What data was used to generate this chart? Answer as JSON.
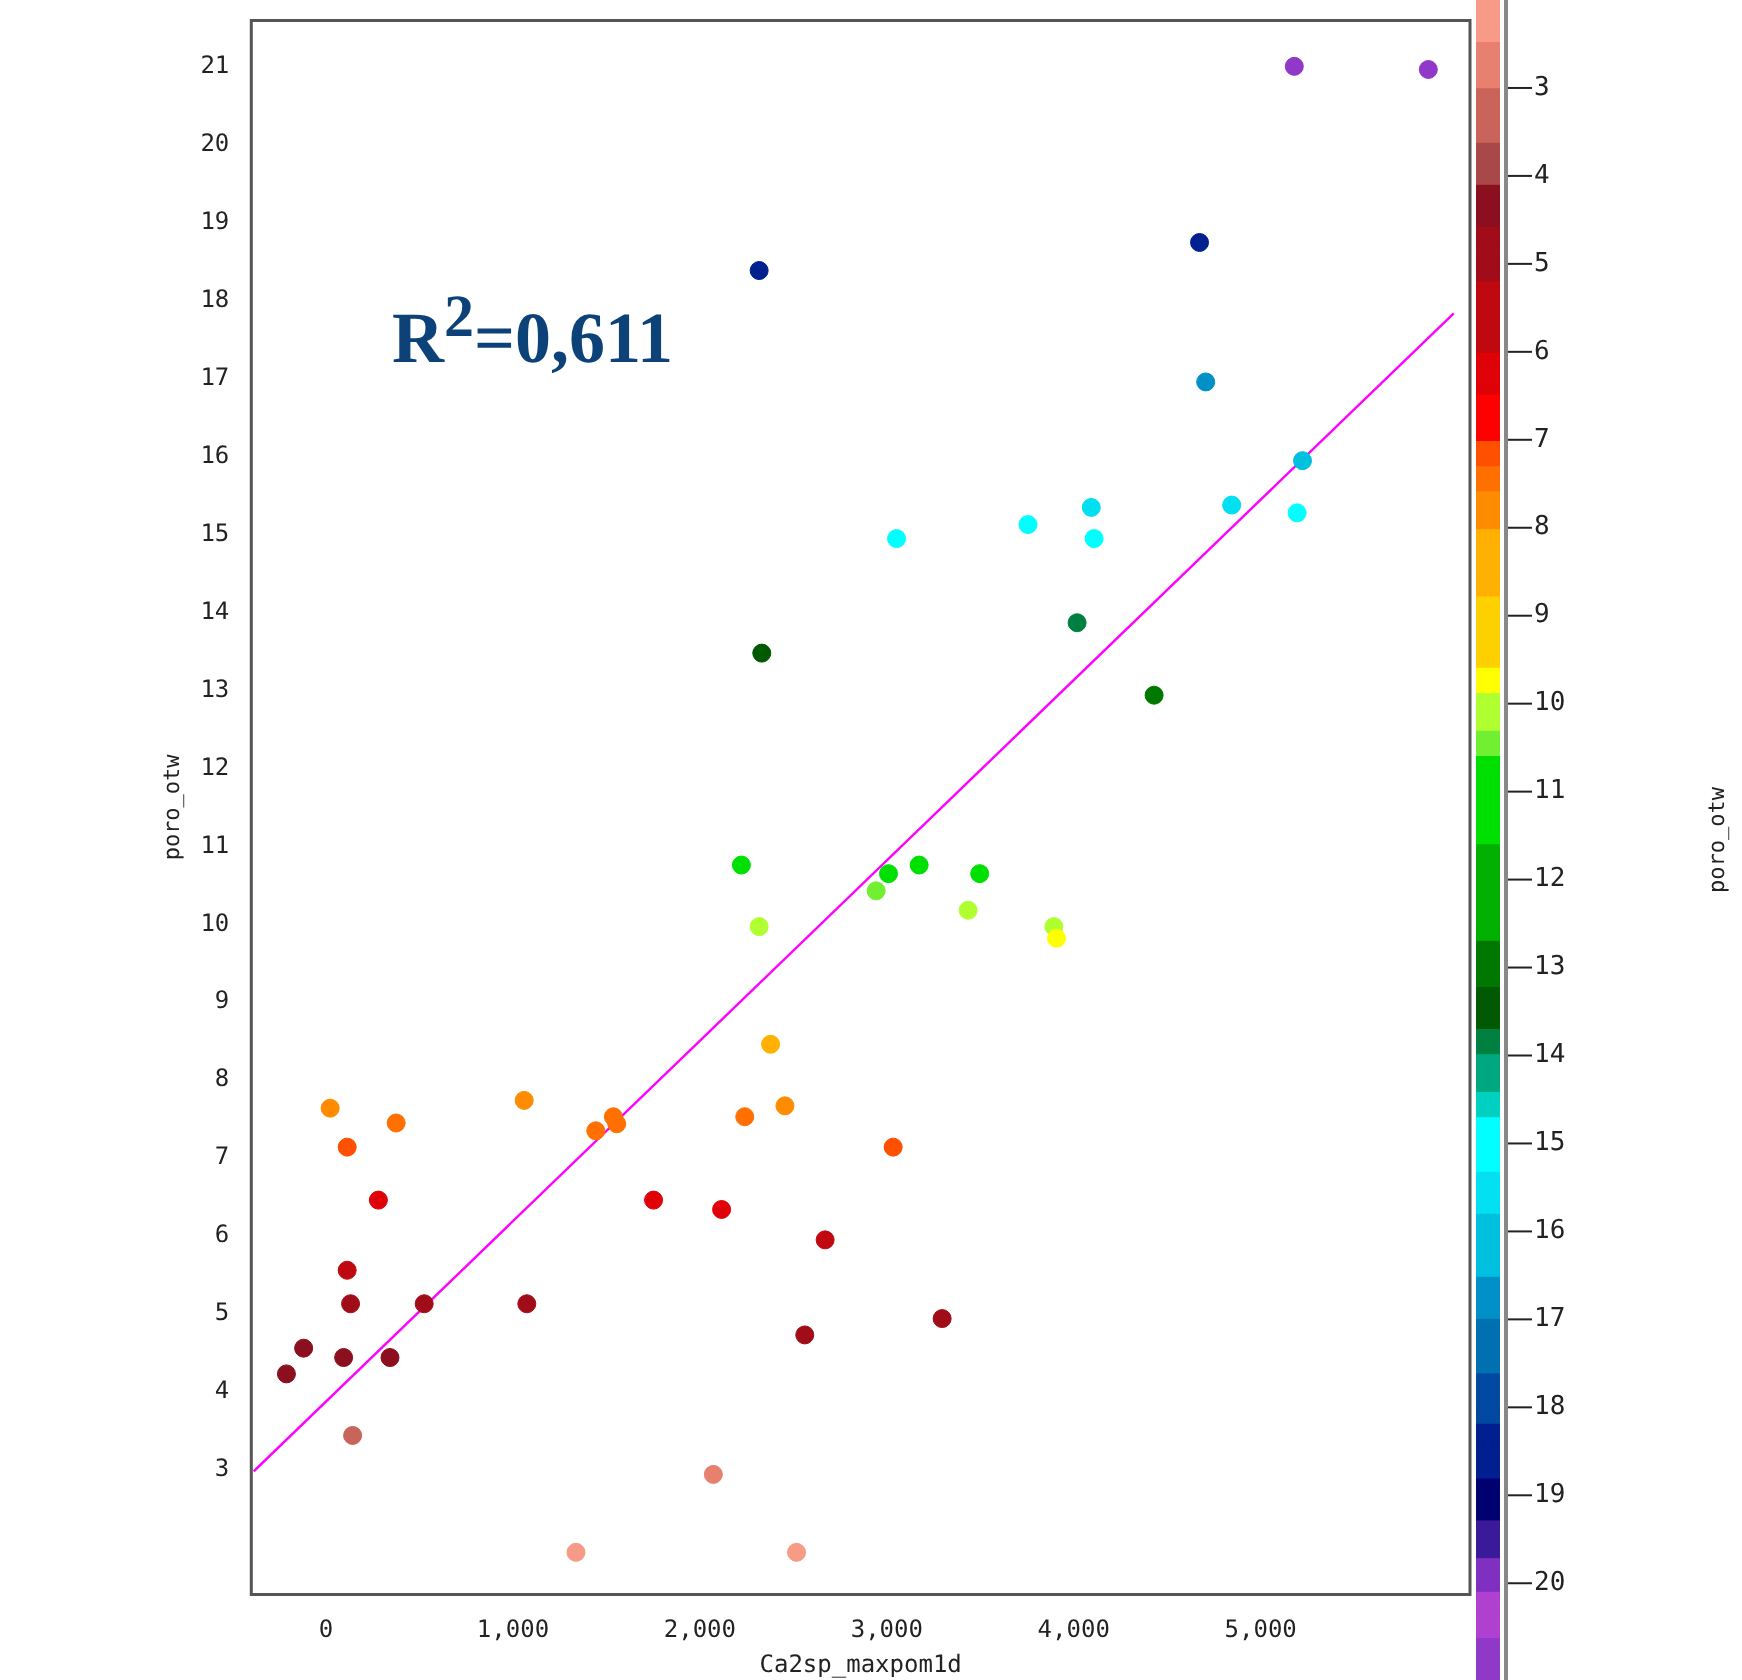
{
  "chart_data": {
    "type": "scatter",
    "xlabel": "Ca2sp_maxpom1d",
    "ylabel": "poro_otw",
    "clabel": "poro_otw",
    "xlim": [
      -400,
      6120
    ],
    "ylim": [
      1.4,
      21.6
    ],
    "xticks": [
      0,
      {
        "value": 1000,
        "label": "1,000"
      },
      {
        "value": 2000,
        "label": "2,000"
      },
      {
        "value": 3000,
        "label": "3,000"
      },
      {
        "value": 4000,
        "label": "4,000"
      },
      {
        "value": 5000,
        "label": "5,000"
      }
    ],
    "yticks": [
      3,
      4,
      5,
      6,
      7,
      8,
      9,
      10,
      11,
      12,
      13,
      14,
      15,
      16,
      17,
      18,
      19,
      20,
      21
    ],
    "clim": [
      2,
      21.1
    ],
    "cticks": [
      3,
      4,
      5,
      6,
      7,
      8,
      9,
      10,
      11,
      12,
      13,
      14,
      15,
      16,
      17,
      18,
      19,
      20
    ],
    "marker": "circle",
    "annotations": [
      "R$^{2}$=0,611"
    ],
    "series": [
      {
        "type": "scatter",
        "x": [
          22,
          113,
          375,
          1060,
          1443,
          1537,
          1555,
          2240,
          2378,
          2455,
          2222,
          2317,
          280,
          113,
          131,
          525,
          1074,
          -120,
          -212,
          94,
          342,
          142,
          1752,
          2116,
          2670,
          2561,
          2072,
          1337,
          2517,
          2943,
          3009,
          3173,
          3497,
          3435,
          3894,
          3908,
          3034,
          3296,
          5180,
          5897,
          4673,
          4706,
          5224,
          4845,
          5195,
          4094,
          4109,
          3755,
          3052,
          4018,
          4430,
          2317,
          2331
        ],
        "values": [
          7.64,
          7.14,
          7.45,
          7.74,
          7.35,
          7.53,
          7.44,
          7.53,
          8.46,
          7.67,
          10.76,
          9.97,
          6.46,
          5.56,
          5.13,
          5.13,
          5.13,
          4.56,
          4.23,
          4.44,
          4.44,
          3.44,
          6.46,
          6.34,
          5.95,
          4.73,
          2.94,
          1.94,
          1.94,
          10.43,
          10.65,
          10.76,
          10.65,
          10.18,
          9.97,
          9.82,
          7.14,
          4.94,
          21.01,
          20.97,
          18.75,
          16.96,
          15.95,
          15.38,
          15.28,
          15.35,
          14.95,
          15.13,
          14.95,
          13.87,
          12.94,
          18.39,
          13.48
        ],
        "colors": [
          "#ff8c00",
          "#ff5000",
          "#ff7000",
          "#ff8c00",
          "#ff7000",
          "#ff7000",
          "#ff7000",
          "#ff7000",
          "#ffb000",
          "#ff8c00",
          "#00e000",
          "#b0ff30",
          "#e00008",
          "#c00810",
          "#a00c18",
          "#a00c18",
          "#a00c18",
          "#8b0f1e",
          "#8b0f1e",
          "#8b0f1e",
          "#8b0f1e",
          "#c8645a",
          "#e00008",
          "#e00008",
          "#c00810",
          "#a00c18",
          "#e8806f",
          "#f79a86",
          "#f79a86",
          "#70f030",
          "#00e000",
          "#00e000",
          "#00e000",
          "#b0ff30",
          "#b0ff30",
          "#ffff00",
          "#ff5000",
          "#a00c18",
          "#9038c8",
          "#9038c8",
          "#002090",
          "#0090c8",
          "#00c0e0",
          "#00e0f0",
          "#00ffff",
          "#00e0f0",
          "#00ffff",
          "#00ffff",
          "#00ffff",
          "#008040",
          "#007800",
          "#002090",
          "#005800"
        ],
        "cvalues": [
          7.64,
          7.14,
          7.45,
          7.74,
          7.35,
          7.53,
          7.44,
          7.53,
          8.46,
          7.67,
          10.76,
          9.97,
          6.46,
          5.56,
          5.13,
          5.13,
          5.13,
          4.56,
          4.23,
          4.44,
          4.44,
          3.44,
          6.46,
          6.34,
          5.95,
          4.73,
          2.94,
          1.94,
          1.94,
          10.43,
          10.65,
          10.76,
          10.65,
          10.18,
          9.97,
          9.82,
          7.14,
          4.94,
          21.01,
          20.97,
          18.75,
          16.96,
          15.95,
          15.38,
          15.28,
          15.35,
          14.95,
          15.13,
          14.95,
          13.87,
          12.94,
          18.39,
          13.48
        ]
      },
      {
        "type": "line",
        "x": [
          -387,
          6033
        ],
        "values": [
          2.98,
          17.84
        ],
        "color": "#ff00ff",
        "marker": "none",
        "line_style": "solid"
      }
    ]
  }
}
